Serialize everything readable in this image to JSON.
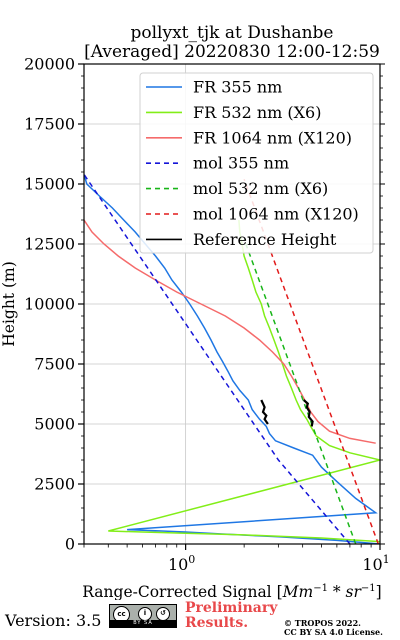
{
  "chart_data": {
    "type": "line",
    "title_line1": "pollyxt_tjk at Dushanbe",
    "title_line2": "[Averaged] 20220830 12:00-12:59",
    "ylabel": "Height (m)",
    "xlabel": "Range-Corrected Signal [Mm^{-1}*sr^{-1}]",
    "xscale": "log",
    "xlim": [
      0.3,
      10
    ],
    "ylim": [
      0,
      20000
    ],
    "xticks": [
      {
        "value": 1,
        "label": "10",
        "exp": "0"
      },
      {
        "value": 10,
        "label": "10",
        "exp": "1"
      }
    ],
    "yticks": [
      {
        "value": 0,
        "label": "0"
      },
      {
        "value": 2500,
        "label": "2500"
      },
      {
        "value": 5000,
        "label": "5000"
      },
      {
        "value": 7500,
        "label": "7500"
      },
      {
        "value": 10000,
        "label": "10000"
      },
      {
        "value": 12500,
        "label": "12500"
      },
      {
        "value": 15000,
        "label": "15000"
      },
      {
        "value": 17500,
        "label": "17500"
      },
      {
        "value": 20000,
        "label": "20000"
      }
    ],
    "grid": true,
    "legend_position": "top-right",
    "series": [
      {
        "name": "FR 355 nm",
        "color": "#1f77e4",
        "style": "solid",
        "points": [
          [
            10,
            0
          ],
          [
            6,
            150
          ],
          [
            3,
            300
          ],
          [
            1.5,
            420
          ],
          [
            1.0,
            500
          ],
          [
            0.7,
            550
          ],
          [
            0.5,
            600
          ],
          [
            9.5,
            1300
          ],
          [
            7.5,
            1900
          ],
          [
            6,
            2600
          ],
          [
            5,
            3200
          ],
          [
            4.5,
            3700
          ],
          [
            3.6,
            4000
          ],
          [
            2.9,
            4300
          ],
          [
            2.7,
            4600
          ],
          [
            2.6,
            4900
          ],
          [
            2.4,
            5200
          ],
          [
            2.2,
            5600
          ],
          [
            2.1,
            6000
          ],
          [
            1.9,
            6400
          ],
          [
            1.75,
            6800
          ],
          [
            1.65,
            7200
          ],
          [
            1.55,
            7600
          ],
          [
            1.45,
            8000
          ],
          [
            1.35,
            8500
          ],
          [
            1.25,
            9000
          ],
          [
            1.15,
            9500
          ],
          [
            1.05,
            10000
          ],
          [
            0.95,
            10500
          ],
          [
            0.85,
            11000
          ],
          [
            0.78,
            11500
          ],
          [
            0.7,
            12000
          ],
          [
            0.62,
            12500
          ],
          [
            0.55,
            13000
          ],
          [
            0.48,
            13500
          ],
          [
            0.42,
            14000
          ],
          [
            0.36,
            14500
          ],
          [
            0.31,
            15000
          ],
          [
            0.3,
            15400
          ]
        ]
      },
      {
        "name": "FR 532 nm (X6)",
        "color": "#82ee18",
        "style": "solid",
        "points": [
          [
            10,
            100
          ],
          [
            5,
            250
          ],
          [
            2,
            380
          ],
          [
            1,
            450
          ],
          [
            0.6,
            500
          ],
          [
            0.4,
            540
          ],
          [
            10,
            3500
          ],
          [
            7,
            3800
          ],
          [
            5.5,
            4100
          ],
          [
            4.7,
            4500
          ],
          [
            4.4,
            4900
          ],
          [
            4.2,
            5200
          ],
          [
            3.9,
            5600
          ],
          [
            3.7,
            6000
          ],
          [
            3.5,
            6500
          ],
          [
            3.3,
            7000
          ],
          [
            3.15,
            7500
          ],
          [
            3.0,
            8000
          ],
          [
            2.85,
            8500
          ],
          [
            2.7,
            9000
          ],
          [
            2.55,
            9500
          ],
          [
            2.45,
            10000
          ],
          [
            2.3,
            10500
          ],
          [
            2.2,
            11000
          ],
          [
            2.1,
            11500
          ],
          [
            2.0,
            12000
          ],
          [
            1.95,
            12500
          ],
          [
            1.9,
            13000
          ],
          [
            1.88,
            13500
          ]
        ]
      },
      {
        "name": "FR 1064 nm (X120)",
        "color": "#f56b6b",
        "style": "solid",
        "points": [
          [
            9.5,
            4200
          ],
          [
            7,
            4400
          ],
          [
            5.5,
            4700
          ],
          [
            4.8,
            5100
          ],
          [
            4.4,
            5500
          ],
          [
            4.1,
            6000
          ],
          [
            3.8,
            6500
          ],
          [
            3.5,
            7000
          ],
          [
            3.2,
            7500
          ],
          [
            2.8,
            8000
          ],
          [
            2.4,
            8500
          ],
          [
            2.0,
            9000
          ],
          [
            1.6,
            9500
          ],
          [
            1.2,
            10000
          ],
          [
            0.9,
            10500
          ],
          [
            0.7,
            11000
          ],
          [
            0.55,
            11500
          ],
          [
            0.45,
            12000
          ],
          [
            0.38,
            12500
          ],
          [
            0.33,
            13000
          ],
          [
            0.3,
            13500
          ]
        ]
      },
      {
        "name": "mol 355 nm",
        "color": "#1515d8",
        "style": "dashed",
        "points": [
          [
            7,
            0
          ],
          [
            3,
            3500
          ],
          [
            0.3,
            15400
          ]
        ]
      },
      {
        "name": "mol 532 nm (X6)",
        "color": "#18b518",
        "style": "dashed",
        "points": [
          [
            7.5,
            0
          ],
          [
            2,
            12700
          ]
        ]
      },
      {
        "name": "mol 1064 nm (X120)",
        "color": "#e21a1a",
        "style": "dashed",
        "points": [
          [
            9.8,
            0
          ],
          [
            2,
            15200
          ]
        ]
      },
      {
        "name": "Reference Height",
        "color": "#000000",
        "style": "solid",
        "points": [
          [
            2.4,
            6000
          ],
          [
            2.6,
            5200
          ],
          [
            2.8,
            4800
          ],
          [
            4.0,
            6000
          ],
          [
            4.5,
            4800
          ]
        ]
      }
    ]
  },
  "footer": {
    "version": "Version: 3.5",
    "license_badge": "cc by sa",
    "badge_strip": "BY  SA",
    "preliminary_line1": "Preliminary",
    "preliminary_line2": "Results.",
    "copyright_line1": "© TROPOS 2022.",
    "copyright_line2": "CC BY SA 4.0 License."
  }
}
